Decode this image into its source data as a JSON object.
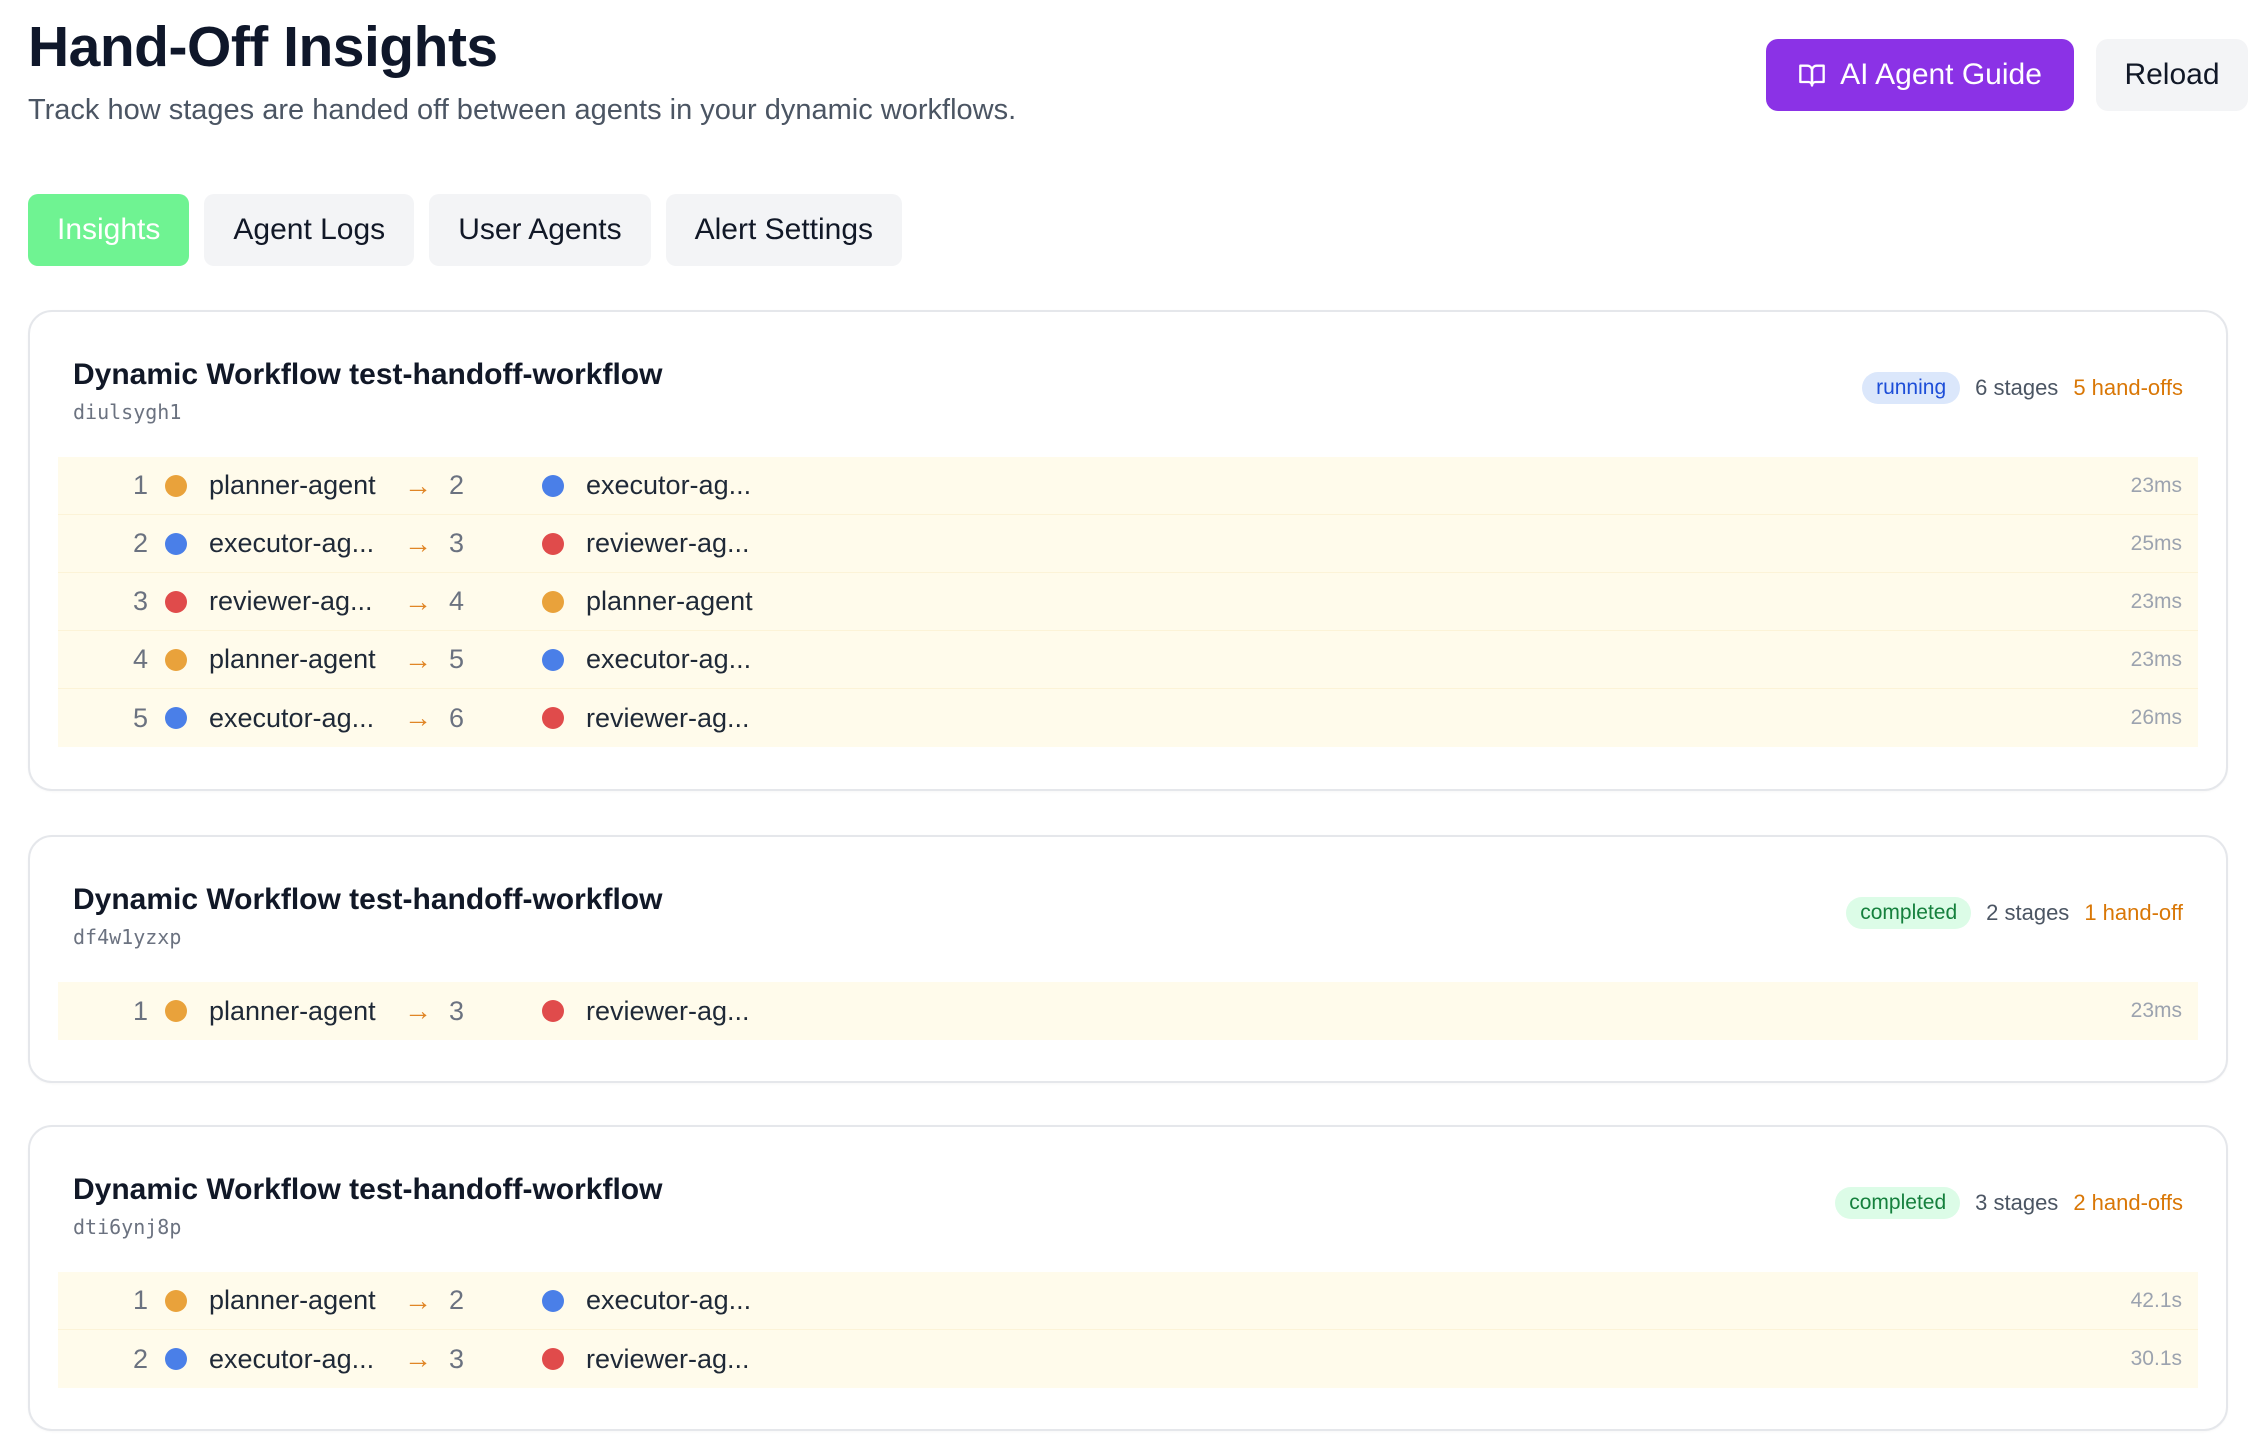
{
  "header": {
    "title": "Hand-Off Insights",
    "subtitle": "Track how stages are handed off between agents in your dynamic workflows."
  },
  "actions": {
    "guide_label": "AI Agent Guide",
    "guide_icon": "book-open-icon",
    "reload_label": "Reload"
  },
  "tabs": [
    {
      "label": "Insights",
      "active": true
    },
    {
      "label": "Agent Logs",
      "active": false
    },
    {
      "label": "User Agents",
      "active": false
    },
    {
      "label": "Alert Settings",
      "active": false
    }
  ],
  "colors": {
    "planner-agent": "#e9a23b",
    "executor-agent": "#4a7fe8",
    "reviewer-agent": "#e04b4b",
    "accent": "#8b32e6",
    "active_tab": "#6ff392"
  },
  "workflows": [
    {
      "title": "Dynamic Workflow test-handoff-workflow",
      "id": "diulsygh1",
      "status": "running",
      "stages": "6 stages",
      "handoffs": "5 hand-offs",
      "rows": [
        {
          "idx": "1",
          "from": "planner-agent",
          "from_color": "#e9a23b",
          "next": "2",
          "to": "executor-ag...",
          "to_color": "#4a7fe8",
          "duration": "23ms"
        },
        {
          "idx": "2",
          "from": "executor-ag...",
          "from_color": "#4a7fe8",
          "next": "3",
          "to": "reviewer-ag...",
          "to_color": "#e04b4b",
          "duration": "25ms"
        },
        {
          "idx": "3",
          "from": "reviewer-ag...",
          "from_color": "#e04b4b",
          "next": "4",
          "to": "planner-agent",
          "to_color": "#e9a23b",
          "duration": "23ms"
        },
        {
          "idx": "4",
          "from": "planner-agent",
          "from_color": "#e9a23b",
          "next": "5",
          "to": "executor-ag...",
          "to_color": "#4a7fe8",
          "duration": "23ms"
        },
        {
          "idx": "5",
          "from": "executor-ag...",
          "from_color": "#4a7fe8",
          "next": "6",
          "to": "reviewer-ag...",
          "to_color": "#e04b4b",
          "duration": "26ms"
        }
      ]
    },
    {
      "title": "Dynamic Workflow test-handoff-workflow",
      "id": "df4w1yzxp",
      "status": "completed",
      "stages": "2 stages",
      "handoffs": "1 hand-off",
      "rows": [
        {
          "idx": "1",
          "from": "planner-agent",
          "from_color": "#e9a23b",
          "next": "3",
          "to": "reviewer-ag...",
          "to_color": "#e04b4b",
          "duration": "23ms"
        }
      ]
    },
    {
      "title": "Dynamic Workflow test-handoff-workflow",
      "id": "dti6ynj8p",
      "status": "completed",
      "stages": "3 stages",
      "handoffs": "2 hand-offs",
      "rows": [
        {
          "idx": "1",
          "from": "planner-agent",
          "from_color": "#e9a23b",
          "next": "2",
          "to": "executor-ag...",
          "to_color": "#4a7fe8",
          "duration": "42.1s"
        },
        {
          "idx": "2",
          "from": "executor-ag...",
          "from_color": "#4a7fe8",
          "next": "3",
          "to": "reviewer-ag...",
          "to_color": "#e04b4b",
          "duration": "30.1s"
        }
      ]
    }
  ]
}
